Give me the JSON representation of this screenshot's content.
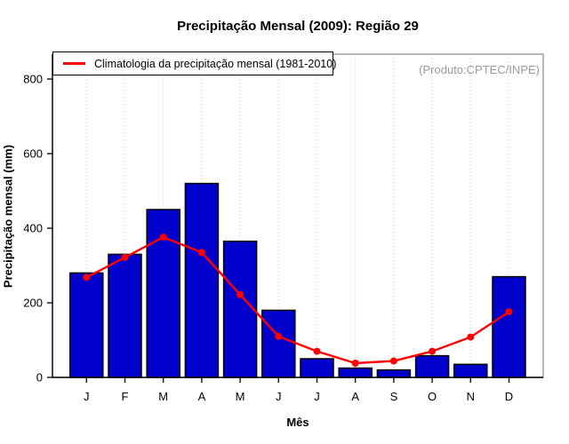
{
  "watermark": "(Produto:CPTEC/INPE)",
  "legend": {
    "label": "Climatologia da precipitação mensal (1981-2010)",
    "position": "topleft"
  },
  "colors": {
    "bar": "#0000CD",
    "bar_border": "#000000",
    "line": "#FF0000",
    "grid": "#CCCCCC",
    "box_border": "#888888",
    "axis": "#000000",
    "watermark": "#9A9A9A",
    "background": "#FFFFFF"
  },
  "chart_data": {
    "type": "bar",
    "title": "Precipitação Mensal (2009): Região 29",
    "xlabel": "Mês",
    "ylabel": "Precipitação mensal (mm)",
    "categories": [
      "J",
      "F",
      "M",
      "A",
      "M",
      "J",
      "J",
      "A",
      "S",
      "O",
      "N",
      "D"
    ],
    "series": [
      {
        "name": "Precipitação mensal (2009)",
        "type": "bar",
        "values": [
          280,
          330,
          450,
          520,
          365,
          180,
          50,
          25,
          20,
          58,
          35,
          270
        ]
      },
      {
        "name": "Climatologia da precipitação mensal (1981-2010)",
        "type": "line",
        "values": [
          268,
          322,
          376,
          335,
          222,
          110,
          70,
          38,
          44,
          70,
          108,
          176
        ]
      }
    ],
    "ylim": [
      0,
      867
    ],
    "yticks": [
      0,
      200,
      400,
      600,
      800
    ],
    "grid": "vertical-dotted",
    "legend_position": "topleft",
    "annotations": [
      "(Produto:CPTEC/INPE)"
    ]
  }
}
